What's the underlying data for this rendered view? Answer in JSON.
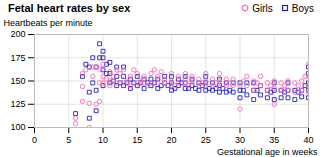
{
  "chart_data": {
    "type": "scatter",
    "title": "Fetal heart rates by sex",
    "xlabel": "Gestational age in weeks",
    "ylabel": "Heartbeats per minute",
    "xlim": [
      0,
      40
    ],
    "ylim": [
      100,
      200
    ],
    "xticks": [
      0,
      5,
      10,
      15,
      20,
      25,
      30,
      35,
      40
    ],
    "yticks": [
      100,
      125,
      150,
      175,
      200
    ],
    "grid": true,
    "legend": "upper right",
    "series": [
      {
        "name": "Girls",
        "color": "#ff69b4",
        "marker": "circle",
        "values": [
          [
            6,
            104
          ],
          [
            6,
            110
          ],
          [
            7,
            128
          ],
          [
            7,
            144
          ],
          [
            7,
            158
          ],
          [
            7.5,
            162
          ],
          [
            8,
            100
          ],
          [
            8,
            126
          ],
          [
            8.5,
            155
          ],
          [
            8.5,
            165
          ],
          [
            9,
            125
          ],
          [
            9,
            165
          ],
          [
            9.5,
            128
          ],
          [
            9.5,
            148
          ],
          [
            9.5,
            163
          ],
          [
            10,
            148
          ],
          [
            10,
            155
          ],
          [
            10,
            168
          ],
          [
            10.5,
            152
          ],
          [
            11,
            145
          ],
          [
            11,
            150
          ],
          [
            11,
            160
          ],
          [
            11.5,
            155
          ],
          [
            12,
            148
          ],
          [
            12,
            162
          ],
          [
            12.5,
            158
          ],
          [
            13,
            148
          ],
          [
            13,
            162
          ],
          [
            13.5,
            150
          ],
          [
            14,
            145
          ],
          [
            14,
            155
          ],
          [
            14.5,
            162
          ],
          [
            15,
            148
          ],
          [
            15,
            158
          ],
          [
            15.5,
            150
          ],
          [
            16,
            148
          ],
          [
            16,
            155
          ],
          [
            16.5,
            145
          ],
          [
            17,
            148
          ],
          [
            17,
            158
          ],
          [
            17.5,
            162
          ],
          [
            18,
            148
          ],
          [
            18,
            155
          ],
          [
            18.5,
            160
          ],
          [
            19,
            148
          ],
          [
            19,
            152
          ],
          [
            20,
            145
          ],
          [
            20,
            150
          ],
          [
            20,
            158
          ],
          [
            20.5,
            145
          ],
          [
            21,
            148
          ],
          [
            21,
            155
          ],
          [
            22,
            148
          ],
          [
            22,
            152
          ],
          [
            22,
            158
          ],
          [
            22.5,
            145
          ],
          [
            23,
            150
          ],
          [
            23,
            155
          ],
          [
            24,
            145
          ],
          [
            24,
            152
          ],
          [
            24.5,
            148
          ],
          [
            25,
            145
          ],
          [
            25,
            150
          ],
          [
            25,
            158
          ],
          [
            26,
            145
          ],
          [
            26,
            152
          ],
          [
            26.5,
            148
          ],
          [
            27,
            143
          ],
          [
            27,
            150
          ],
          [
            27,
            158
          ],
          [
            28,
            145
          ],
          [
            28,
            152
          ],
          [
            28.5,
            148
          ],
          [
            29,
            145
          ],
          [
            29,
            152
          ],
          [
            30,
            120
          ],
          [
            30,
            145
          ],
          [
            30.5,
            150
          ],
          [
            31,
            145
          ],
          [
            31,
            155
          ],
          [
            32,
            140
          ],
          [
            32,
            150
          ],
          [
            32.5,
            148
          ],
          [
            33,
            145
          ],
          [
            33,
            155
          ],
          [
            34,
            140
          ],
          [
            34,
            148
          ],
          [
            34.5,
            145
          ],
          [
            35,
            125
          ],
          [
            35,
            142
          ],
          [
            35,
            150
          ],
          [
            36,
            140
          ],
          [
            36,
            148
          ],
          [
            36.5,
            145
          ],
          [
            37,
            140
          ],
          [
            37,
            150
          ],
          [
            38,
            138
          ],
          [
            38,
            148
          ],
          [
            38.5,
            145
          ],
          [
            39,
            140
          ],
          [
            39,
            150
          ],
          [
            39.5,
            155
          ],
          [
            40,
            138
          ],
          [
            40,
            145
          ],
          [
            40,
            155
          ],
          [
            40,
            168
          ]
        ]
      },
      {
        "name": "Boys",
        "color": "#2222cc",
        "marker": "square",
        "values": [
          [
            6,
            115
          ],
          [
            7,
            155
          ],
          [
            7.5,
            168
          ],
          [
            8,
            110
          ],
          [
            8,
            138
          ],
          [
            8,
            165
          ],
          [
            8.5,
            148
          ],
          [
            8.5,
            175
          ],
          [
            9,
            118
          ],
          [
            9,
            140
          ],
          [
            9,
            165
          ],
          [
            9.5,
            175
          ],
          [
            9.5,
            190
          ],
          [
            10,
            145
          ],
          [
            10,
            162
          ],
          [
            10,
            175
          ],
          [
            10,
            182
          ],
          [
            10.5,
            158
          ],
          [
            10.5,
            168
          ],
          [
            11,
            148
          ],
          [
            11,
            158
          ],
          [
            11,
            170
          ],
          [
            11.5,
            150
          ],
          [
            12,
            145
          ],
          [
            12,
            155
          ],
          [
            12,
            165
          ],
          [
            12.5,
            148
          ],
          [
            13,
            145
          ],
          [
            13,
            155
          ],
          [
            13,
            165
          ],
          [
            13.5,
            148
          ],
          [
            14,
            142
          ],
          [
            14,
            152
          ],
          [
            14.5,
            148
          ],
          [
            15,
            145
          ],
          [
            15,
            155
          ],
          [
            15.5,
            148
          ],
          [
            16,
            142
          ],
          [
            16,
            152
          ],
          [
            16.5,
            148
          ],
          [
            17,
            145
          ],
          [
            17,
            152
          ],
          [
            17.5,
            148
          ],
          [
            18,
            142
          ],
          [
            18,
            152
          ],
          [
            18.5,
            145
          ],
          [
            19,
            148
          ],
          [
            19,
            155
          ],
          [
            19.5,
            145
          ],
          [
            20,
            140
          ],
          [
            20,
            148
          ],
          [
            20,
            155
          ],
          [
            20.5,
            142
          ],
          [
            21,
            145
          ],
          [
            21,
            152
          ],
          [
            21.5,
            148
          ],
          [
            22,
            142
          ],
          [
            22,
            148
          ],
          [
            22,
            155
          ],
          [
            22.5,
            142
          ],
          [
            23,
            145
          ],
          [
            23,
            152
          ],
          [
            23.5,
            142
          ],
          [
            24,
            140
          ],
          [
            24,
            148
          ],
          [
            24.5,
            145
          ],
          [
            25,
            140
          ],
          [
            25,
            148
          ],
          [
            25,
            155
          ],
          [
            25.5,
            142
          ],
          [
            26,
            140
          ],
          [
            26,
            148
          ],
          [
            26.5,
            142
          ],
          [
            27,
            138
          ],
          [
            27,
            145
          ],
          [
            27,
            152
          ],
          [
            27.5,
            142
          ],
          [
            28,
            138
          ],
          [
            28,
            148
          ],
          [
            28.5,
            140
          ],
          [
            29,
            138
          ],
          [
            29,
            148
          ],
          [
            30,
            132
          ],
          [
            30,
            140
          ],
          [
            30,
            148
          ],
          [
            30.5,
            140
          ],
          [
            31,
            135
          ],
          [
            31,
            148
          ],
          [
            32,
            130
          ],
          [
            32,
            140
          ],
          [
            32,
            148
          ],
          [
            32.5,
            140
          ],
          [
            33,
            135
          ],
          [
            33,
            145
          ],
          [
            34,
            132
          ],
          [
            34,
            140
          ],
          [
            34.5,
            138
          ],
          [
            35,
            130
          ],
          [
            35,
            140
          ],
          [
            35,
            148
          ],
          [
            36,
            132
          ],
          [
            36,
            140
          ],
          [
            36.5,
            138
          ],
          [
            37,
            132
          ],
          [
            37,
            140
          ],
          [
            37,
            148
          ],
          [
            38,
            130
          ],
          [
            38,
            140
          ],
          [
            38.5,
            138
          ],
          [
            39,
            133
          ],
          [
            39,
            140
          ],
          [
            39.5,
            145
          ],
          [
            40,
            132
          ],
          [
            40,
            140
          ],
          [
            40,
            148
          ],
          [
            40,
            158
          ],
          [
            40,
            165
          ]
        ]
      }
    ]
  }
}
